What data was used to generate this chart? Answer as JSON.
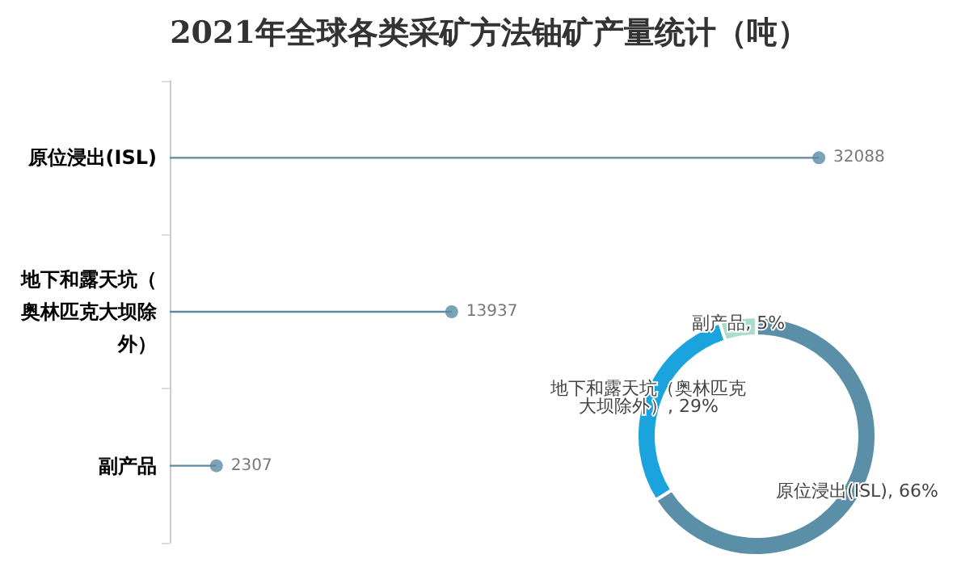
{
  "chart_data": [
    {
      "type": "lollipop",
      "title": "2021年全球各类采矿方法铀矿产量统计（吨）",
      "orientation": "horizontal",
      "categories": [
        "原位浸出(ISL)",
        "地下和露天坑（奥林匹克大坝除外）",
        "副产品"
      ],
      "values": [
        32088,
        13937,
        2307
      ],
      "color": "#5b8ba3",
      "data_labels": true,
      "marker": "circle",
      "grid": false,
      "legend": false
    },
    {
      "type": "donut",
      "categories": [
        "原位浸出(ISL)",
        "地下和露天坑（奥林匹克大坝除外）",
        "副产品"
      ],
      "values": [
        66,
        29,
        5
      ],
      "colors": [
        "#5b8fa8",
        "#1aa3dc",
        "#a9dccd"
      ],
      "value_labels": [
        "66%",
        "29%",
        "5%"
      ],
      "legend": false
    }
  ]
}
